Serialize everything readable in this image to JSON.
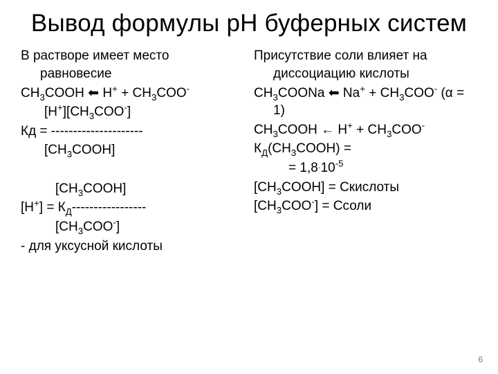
{
  "title": "Вывод формулы pH буферных систем",
  "left": {
    "l1": "В растворе имеет место равновесие",
    "l2_pre": "CH",
    "l2_s1": "3",
    "l2_mid": "COOH ⬅ H",
    "l2_sup1": "+",
    "l2_mid2": " + CH",
    "l2_s2": "3",
    "l2_mid3": "COO",
    "l2_sup2": "-",
    "l3_pre": "[H",
    "l3_sup1": "+",
    "l3_mid": "][CH",
    "l3_s1": "3",
    "l3_mid2": "COO",
    "l3_sup2": "-",
    "l3_end": "]",
    "l4": "Кд = ---------------------",
    "l5_pre": "[CH",
    "l5_s1": "3",
    "l5_end": "COOH]",
    "l6_pre": "[CH",
    "l6_s1": "3",
    "l6_end": "COOH]",
    "l7_pre": "[H",
    "l7_sup1": "+",
    "l7_mid": "] = К",
    "l7_sub1": "Д",
    "l7_dash": "-----------------",
    "l8_pre": "[CH",
    "l8_s1": "3",
    "l8_mid": "COO",
    "l8_sup1": "-",
    "l8_end": "]",
    "l9": " - для уксусной кислоты"
  },
  "right": {
    "r1": "Присутствие соли влияет на диссоциацию кислоты",
    "r2_pre": "CH",
    "r2_s1": "3",
    "r2_mid": "COONa ⬅ Na",
    "r2_sup1": "+",
    "r2_mid2": " + CH",
    "r2_s2": "3",
    "r2_mid3": "COO",
    "r2_sup2": "-",
    "r2_end": " (α = 1)",
    "r3_pre": "CH",
    "r3_s1": "3",
    "r3_mid": "COOH ← Н",
    "r3_sup1": "+",
    "r3_mid2": " + CH",
    "r3_s2": "3",
    "r3_mid3": "COO",
    "r3_sup2": "-",
    "r4_pre": "К",
    "r4_sub1": "Д",
    "r4_mid": "(CH",
    "r4_s1": "3",
    "r4_end": "COOH) =",
    "r5_pre": "= 1,8",
    "r5_dot": "·",
    "r5_mid": "10",
    "r5_sup": "-5",
    "r6_pre": "[CH",
    "r6_s1": "3",
    "r6_end": "COOH] = Cкислоты",
    "r7_pre": "[CH",
    "r7_s1": "3",
    "r7_mid": "COO",
    "r7_sup1": "-",
    "r7_end": "] = Cсоли"
  },
  "pagenum": "6",
  "style": {
    "bg": "#ffffff",
    "text": "#000000",
    "title_fontsize": 35,
    "body_fontsize": 19,
    "pagenum_color": "#7a7a7a",
    "pagenum_fontsize": 12
  }
}
